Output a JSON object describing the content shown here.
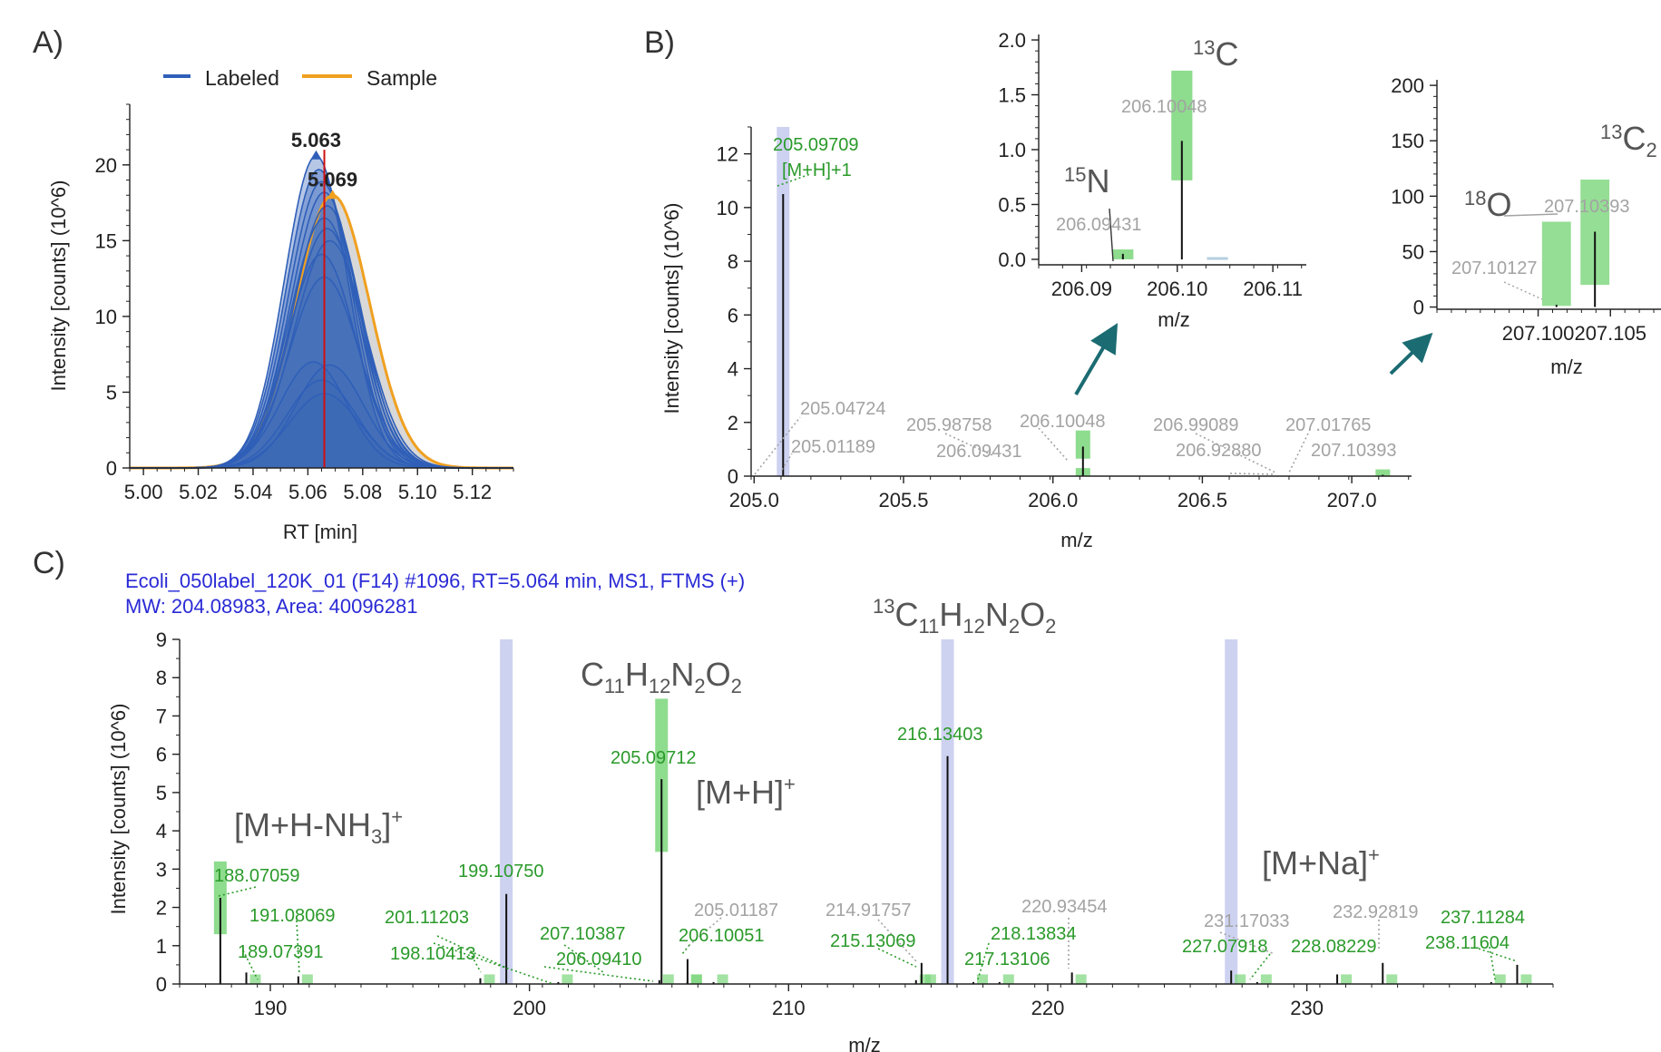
{
  "panel_labels": [
    "A)",
    "B)",
    "C)"
  ],
  "colors": {
    "labeled": "#2f5fb8",
    "sample": "#f0a020",
    "apex": "#d01010",
    "green": "#2a9a2a",
    "gray": "#a3a3a3",
    "box_green": "#7ad67a",
    "box_blue": "#c9cdf0",
    "arrow": "#1b6b72",
    "header": "#2a2ad6"
  },
  "chart_data": [
    {
      "id": "A",
      "type": "line",
      "legend": [
        "Labeled",
        "Sample"
      ],
      "legend_position": "top",
      "xlabel": "RT [min]",
      "ylabel": "Intensity [counts] (10^6)",
      "xlim": [
        4.995,
        5.135
      ],
      "ylim": [
        0,
        24
      ],
      "xticks": [
        5.0,
        5.02,
        5.04,
        5.06,
        5.08,
        5.1,
        5.12
      ],
      "xtick_labels": [
        "5.00",
        "5.02",
        "5.04",
        "5.06",
        "5.08",
        "5.10",
        "5.12"
      ],
      "yticks": [
        0,
        5,
        10,
        15,
        20
      ],
      "apex_labels": [
        {
          "text": "5.063",
          "x": 5.063,
          "y": 20.6
        },
        {
          "text": "5.069",
          "x": 5.069,
          "y": 18.0
        }
      ],
      "apex_line_x": 5.066,
      "labeled_traces": [
        {
          "mu": 5.063,
          "amp": 20.6,
          "sigma": 0.0115
        },
        {
          "mu": 5.064,
          "amp": 19.7,
          "sigma": 0.0118
        },
        {
          "mu": 5.065,
          "amp": 18.9,
          "sigma": 0.012
        },
        {
          "mu": 5.066,
          "amp": 18.2,
          "sigma": 0.0122
        },
        {
          "mu": 5.067,
          "amp": 17.3,
          "sigma": 0.0124
        },
        {
          "mu": 5.066,
          "amp": 16.5,
          "sigma": 0.0126
        },
        {
          "mu": 5.067,
          "amp": 15.8,
          "sigma": 0.0128
        },
        {
          "mu": 5.068,
          "amp": 15.0,
          "sigma": 0.013
        },
        {
          "mu": 5.065,
          "amp": 14.1,
          "sigma": 0.0125
        },
        {
          "mu": 5.066,
          "amp": 12.6,
          "sigma": 0.0128
        },
        {
          "mu": 5.062,
          "amp": 7.0,
          "sigma": 0.0122
        },
        {
          "mu": 5.068,
          "amp": 6.8,
          "sigma": 0.0124
        },
        {
          "mu": 5.065,
          "amp": 5.8,
          "sigma": 0.0126
        },
        {
          "mu": 5.066,
          "amp": 4.9,
          "sigma": 0.0128
        }
      ],
      "sample_trace": {
        "mu": 5.069,
        "amp": 18.0,
        "sigma": 0.0135
      }
    },
    {
      "id": "B",
      "type": "bar",
      "xlabel": "m/z",
      "ylabel": "Intensity [counts] (10^6)",
      "xlim": [
        204.99,
        207.2
      ],
      "ylim": [
        0,
        13
      ],
      "xticks": [
        205.0,
        205.5,
        206.0,
        206.5,
        207.0
      ],
      "xtick_labels": [
        "205.0",
        "205.5",
        "206.0",
        "206.5",
        "207.0"
      ],
      "yticks": [
        0,
        2,
        4,
        6,
        8,
        10,
        12
      ],
      "sticks": [
        {
          "x": 205.09709,
          "y": 10.5
        },
        {
          "x": 206.10048,
          "y": 1.1
        },
        {
          "x": 207.10393,
          "y": 0.05
        }
      ],
      "highlight_bands": [
        {
          "x": 205.09709,
          "color": "blue"
        }
      ],
      "green_boxes": [
        {
          "x": 206.10048,
          "ymin": 0.65,
          "ymax": 1.7
        },
        {
          "x": 206.10048,
          "ymin": 0.0,
          "ymax": 0.3
        },
        {
          "x": 207.10393,
          "ymin": 0.0,
          "ymax": 0.25
        }
      ],
      "labels": [
        {
          "text": "205.09709",
          "color": "green"
        },
        {
          "text": "[M+H]+1",
          "color": "green"
        },
        {
          "text": "205.04724",
          "color": "gray"
        },
        {
          "text": "205.01189",
          "color": "gray"
        },
        {
          "text": "205.98758",
          "color": "gray"
        },
        {
          "text": "206.09431",
          "color": "gray"
        },
        {
          "text": "206.10048",
          "color": "gray"
        },
        {
          "text": "206.99089",
          "color": "gray"
        },
        {
          "text": "206.92880",
          "color": "gray"
        },
        {
          "text": "207.01765",
          "color": "gray"
        },
        {
          "text": "207.10393",
          "color": "gray"
        }
      ]
    },
    {
      "id": "B-inset-1",
      "type": "bar",
      "xlabel": "m/z",
      "xlim": [
        206.0855,
        206.1135
      ],
      "ylim": [
        -0.05,
        2.05
      ],
      "xticks": [
        206.09,
        206.1,
        206.11
      ],
      "xtick_labels": [
        "206.09",
        "206.10",
        "206.11"
      ],
      "yticks": [
        0.0,
        0.5,
        1.0,
        1.5,
        2.0
      ],
      "ytick_labels": [
        "0.0",
        "0.5",
        "1.0",
        "1.5",
        "2.0"
      ],
      "sticks": [
        {
          "x": 206.09431,
          "y": 0.05
        },
        {
          "x": 206.10048,
          "y": 1.08
        }
      ],
      "boxes": [
        {
          "x": 206.09431,
          "half_width": 0.0011,
          "ymin": 0.0,
          "ymax": 0.09,
          "color": "green"
        },
        {
          "x": 206.10048,
          "half_width": 0.0011,
          "ymin": 0.72,
          "ymax": 1.72,
          "color": "green"
        },
        {
          "x": 206.1042,
          "half_width": 0.0011,
          "ymin": 0.0,
          "ymax": 0.02,
          "color": "blue"
        }
      ],
      "labels": [
        {
          "text": "206.10048",
          "color": "gray"
        },
        {
          "text": "206.09431",
          "color": "gray"
        }
      ],
      "isotopes": [
        {
          "sup": "13",
          "base": "C",
          "sub": ""
        },
        {
          "sup": "15",
          "base": "N",
          "sub": ""
        }
      ]
    },
    {
      "id": "B-inset-2",
      "type": "bar",
      "xlabel": "m/z",
      "xlim": [
        207.093,
        207.1085
      ],
      "ylim": [
        -2,
        205
      ],
      "xticks": [
        207.1,
        207.105
      ],
      "xtick_labels": [
        "207.100",
        "207.105"
      ],
      "yticks": [
        0,
        50,
        100,
        150,
        200
      ],
      "sticks": [
        {
          "x": 207.10127,
          "y": 2
        },
        {
          "x": 207.10393,
          "y": 68
        }
      ],
      "boxes": [
        {
          "x": 207.10127,
          "half_width": 0.001,
          "ymin": 1,
          "ymax": 77,
          "color": "green"
        },
        {
          "x": 207.10393,
          "half_width": 0.001,
          "ymin": 20,
          "ymax": 115,
          "color": "green"
        }
      ],
      "labels": [
        {
          "text": "207.10393",
          "color": "gray"
        },
        {
          "text": "207.10127",
          "color": "gray"
        }
      ],
      "isotopes": [
        {
          "sup": "18",
          "base": "O",
          "sub": ""
        },
        {
          "sup": "13",
          "base": "C",
          "sub": "2"
        }
      ]
    },
    {
      "id": "C",
      "type": "bar",
      "header_lines": [
        "Ecoli_050label_120K_01 (F14) #1096, RT=5.064 min, MS1, FTMS (+)",
        "MW: 204.08983, Area: 40096281"
      ],
      "xlabel": "m/z",
      "ylabel": "Intensity [counts] (10^6)",
      "xlim": [
        186.5,
        239.5
      ],
      "ylim": [
        0,
        9
      ],
      "xticks": [
        190,
        200,
        210,
        220,
        230
      ],
      "yticks": [
        0,
        1,
        2,
        3,
        4,
        5,
        6,
        7,
        8,
        9
      ],
      "sticks": [
        {
          "x": 188.07059,
          "y": 2.25
        },
        {
          "x": 189.07391,
          "y": 0.3
        },
        {
          "x": 191.08069,
          "y": 0.2
        },
        {
          "x": 198.10413,
          "y": 0.15
        },
        {
          "x": 199.1075,
          "y": 2.35
        },
        {
          "x": 201.11203,
          "y": 0.05
        },
        {
          "x": 205.01187,
          "y": 0.1
        },
        {
          "x": 205.09712,
          "y": 5.35
        },
        {
          "x": 206.0941,
          "y": 0.05
        },
        {
          "x": 206.10051,
          "y": 0.65
        },
        {
          "x": 207.10387,
          "y": 0.05
        },
        {
          "x": 214.91757,
          "y": 0.1
        },
        {
          "x": 215.13069,
          "y": 0.55
        },
        {
          "x": 216.13403,
          "y": 5.95
        },
        {
          "x": 217.13106,
          "y": 0.05
        },
        {
          "x": 218.13834,
          "y": 0.05
        },
        {
          "x": 220.93454,
          "y": 0.3
        },
        {
          "x": 227.07918,
          "y": 0.35
        },
        {
          "x": 228.08229,
          "y": 0.05
        },
        {
          "x": 231.17033,
          "y": 0.25
        },
        {
          "x": 232.92819,
          "y": 0.55
        },
        {
          "x": 237.11284,
          "y": 0.05
        },
        {
          "x": 238.11604,
          "y": 0.5
        }
      ],
      "highlight_bands": [
        {
          "x": 199.1075,
          "color": "blue"
        },
        {
          "x": 216.13403,
          "color": "blue"
        },
        {
          "x": 227.07918,
          "color": "blue"
        }
      ],
      "green_boxes": [
        {
          "x": 188.07059,
          "ymin": 1.3,
          "ymax": 3.2
        },
        {
          "x": 205.09712,
          "ymin": 3.45,
          "ymax": 7.45
        }
      ],
      "labels": [
        {
          "text": "188.07059",
          "color": "green"
        },
        {
          "text": "191.08069",
          "color": "green"
        },
        {
          "text": "189.07391",
          "color": "green"
        },
        {
          "text": "199.10750",
          "color": "green"
        },
        {
          "text": "201.11203",
          "color": "green"
        },
        {
          "text": "198.10413",
          "color": "green"
        },
        {
          "text": "207.10387",
          "color": "green"
        },
        {
          "text": "206.09410",
          "color": "green"
        },
        {
          "text": "205.09712",
          "color": "green"
        },
        {
          "text": "205.01187",
          "color": "gray"
        },
        {
          "text": "206.10051",
          "color": "green"
        },
        {
          "text": "214.91757",
          "color": "gray"
        },
        {
          "text": "215.13069",
          "color": "green"
        },
        {
          "text": "216.13403",
          "color": "green"
        },
        {
          "text": "217.13106",
          "color": "green"
        },
        {
          "text": "218.13834",
          "color": "green"
        },
        {
          "text": "220.93454",
          "color": "gray"
        },
        {
          "text": "231.17033",
          "color": "gray"
        },
        {
          "text": "227.07918",
          "color": "green"
        },
        {
          "text": "228.08229",
          "color": "green"
        },
        {
          "text": "232.92819",
          "color": "gray"
        },
        {
          "text": "237.11284",
          "color": "green"
        },
        {
          "text": "238.11604",
          "color": "green"
        }
      ],
      "annotations": [
        {
          "id": "nh3",
          "parts": [
            [
              "[M+H-NH",
              ""
            ],
            [
              "3",
              "sub"
            ],
            [
              "]",
              ""
            ],
            [
              "+",
              "sup"
            ]
          ]
        },
        {
          "id": "formula1",
          "parts": [
            [
              "C",
              ""
            ],
            [
              "11",
              "sub"
            ],
            [
              "H",
              ""
            ],
            [
              "12",
              "sub"
            ],
            [
              "N",
              ""
            ],
            [
              "2",
              "sub"
            ],
            [
              "O",
              ""
            ],
            [
              "2",
              "sub"
            ]
          ]
        },
        {
          "id": "mh",
          "parts": [
            [
              "[M+H]",
              ""
            ],
            [
              "+",
              "sup"
            ]
          ]
        },
        {
          "id": "formula2",
          "parts": [
            [
              "13",
              "sup"
            ],
            [
              "C",
              ""
            ],
            [
              "11",
              "sub"
            ],
            [
              "H",
              ""
            ],
            [
              "12",
              "sub"
            ],
            [
              "N",
              ""
            ],
            [
              "2",
              "sub"
            ],
            [
              "O",
              ""
            ],
            [
              "2",
              "sub"
            ]
          ]
        },
        {
          "id": "mna",
          "parts": [
            [
              "[M+Na]",
              ""
            ],
            [
              "+",
              "sup"
            ]
          ]
        }
      ]
    }
  ]
}
